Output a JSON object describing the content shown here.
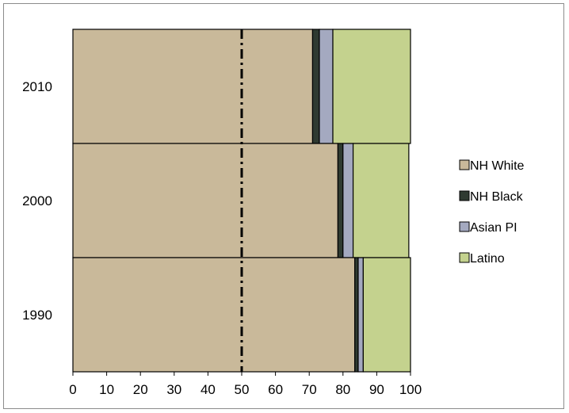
{
  "chart_data": {
    "type": "bar",
    "orientation": "horizontal",
    "stacked": true,
    "categories": [
      "2010",
      "2000",
      "1990"
    ],
    "series": [
      {
        "name": "NH White",
        "values": [
          71,
          78.5,
          83.5
        ],
        "color": "#C9B99A"
      },
      {
        "name": "NH Black",
        "values": [
          2,
          1.5,
          1
        ],
        "color": "#2F3A31"
      },
      {
        "name": "Asian PI",
        "values": [
          4,
          3,
          1.5
        ],
        "color": "#A4A9C0"
      },
      {
        "name": "Latino",
        "values": [
          23,
          16.5,
          14
        ],
        "color": "#C4D28E"
      }
    ],
    "xlim": [
      0,
      100
    ],
    "xticks": [
      "0",
      "10",
      "20",
      "30",
      "40",
      "50",
      "60",
      "70",
      "80",
      "90",
      "100"
    ],
    "reference_line": {
      "x": 50,
      "style": "dash-dot"
    },
    "title": "",
    "xlabel": "",
    "ylabel": "",
    "legend_position": "right",
    "grid": false
  }
}
